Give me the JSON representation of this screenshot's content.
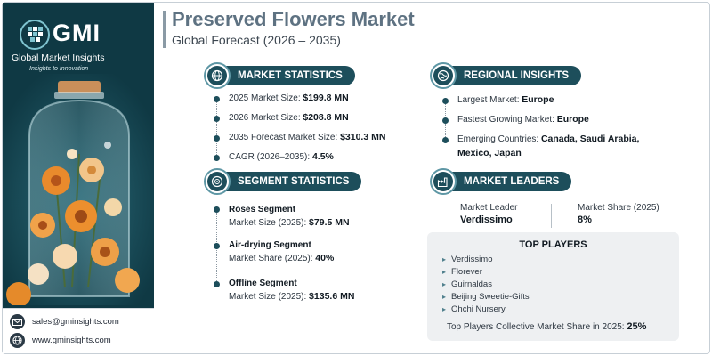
{
  "brand": {
    "short": "GMI",
    "name": "Global Market Insights",
    "tagline": "Insights to Innovation"
  },
  "header": {
    "title": "Preserved Flowers Market",
    "subtitle": "Global Forecast (2026 – 2035)"
  },
  "market_statistics": {
    "heading": "MARKET STATISTICS",
    "items": [
      {
        "label": "2025 Market Size: ",
        "value": "$199.8 MN"
      },
      {
        "label": "2026 Market Size: ",
        "value": "$208.8 MN"
      },
      {
        "label": "2035 Forecast Market Size: ",
        "value": "$310.3 MN"
      },
      {
        "label": "CAGR (2026–2035): ",
        "value": "4.5%"
      }
    ]
  },
  "regional_insights": {
    "heading": "REGIONAL INSIGHTS",
    "items": [
      {
        "label": "Largest Market: ",
        "value": "Europe"
      },
      {
        "label": "Fastest Growing Market: ",
        "value": "Europe"
      },
      {
        "label": "Emerging Countries: ",
        "value": "Canada, Saudi Arabia,",
        "value_line2": "Mexico, Japan"
      }
    ]
  },
  "segment_statistics": {
    "heading": "SEGMENT STATISTICS",
    "items": [
      {
        "name": "Roses Segment",
        "label": "Market Size (2025): ",
        "value": "$79.5 MN"
      },
      {
        "name": "Air-drying Segment",
        "label": "Market Share (2025): ",
        "value": "40%"
      },
      {
        "name": "Offline Segment",
        "label": "Market Size (2025): ",
        "value": "$135.6 MN"
      }
    ]
  },
  "market_leaders": {
    "heading": "MARKET LEADERS",
    "leader_label": "Market Leader",
    "leader_value": "Verdissimo",
    "share_label": "Market Share (2025)",
    "share_value": "8%",
    "top_players_title": "TOP PLAYERS",
    "top_players": [
      "Verdissimo",
      "Florever",
      "Guirnaldas",
      "Beijing Sweetie-Gifts",
      "Ohchi Nursery"
    ],
    "collective_label": "Top Players Collective Market Share in 2025: ",
    "collective_value": "25%"
  },
  "contact": {
    "email": "sales@gminsights.com",
    "website": "www.gminsights.com"
  },
  "colors": {
    "panel": "#0f3944",
    "accent": "#1d4e5b",
    "title": "#5e7282"
  }
}
